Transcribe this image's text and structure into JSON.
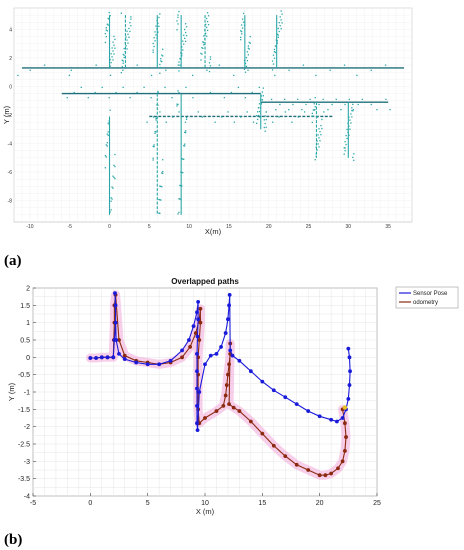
{
  "panel_a_label": "(a)",
  "panel_b_label": "(b)",
  "colors": {
    "map_wall": "#2aa6a6",
    "map_dark": "#1f6f7a",
    "sensor_pose": "#1a1adb",
    "odometry": "#8b2a10",
    "highlight": "#f2a8d8",
    "marker": "#e8c020"
  },
  "chart_data": [
    {
      "type": "scatter",
      "panel": "(a)",
      "title": "",
      "xlabel": "X(m)",
      "ylabel": "Y (m)",
      "xlim": [
        -12,
        38
      ],
      "ylim": [
        -9.5,
        5.5
      ],
      "xticks": [
        -10,
        -5,
        0,
        5,
        10,
        15,
        20,
        25,
        30,
        35
      ],
      "yticks": [
        4,
        2,
        0,
        -2,
        -4,
        -6,
        -8
      ],
      "grid": true,
      "walls": [
        {
          "x": [
            -11,
            37
          ],
          "y": [
            1.3,
            1.3
          ]
        },
        {
          "x": [
            -6,
            19
          ],
          "y": [
            -0.5,
            -0.5
          ]
        },
        {
          "x": [
            5,
            28
          ],
          "y": [
            -2.1,
            -2.1
          ]
        },
        {
          "x": [
            19,
            35
          ],
          "y": [
            -1.1,
            -1.1
          ]
        },
        {
          "x": [
            0,
            0
          ],
          "y": [
            5,
            1.3
          ]
        },
        {
          "x": [
            2,
            2
          ],
          "y": [
            5,
            1.3
          ]
        },
        {
          "x": [
            6,
            6
          ],
          "y": [
            5,
            1.3
          ]
        },
        {
          "x": [
            9,
            9
          ],
          "y": [
            5,
            1.3
          ]
        },
        {
          "x": [
            12,
            12
          ],
          "y": [
            5,
            1.3
          ]
        },
        {
          "x": [
            17,
            17
          ],
          "y": [
            5,
            1.3
          ]
        },
        {
          "x": [
            21,
            21
          ],
          "y": [
            5,
            1.3
          ]
        },
        {
          "x": [
            6,
            6
          ],
          "y": [
            -0.5,
            -9
          ]
        },
        {
          "x": [
            9,
            9
          ],
          "y": [
            -0.5,
            -9
          ]
        },
        {
          "x": [
            19,
            19
          ],
          "y": [
            -0.5,
            -3
          ]
        },
        {
          "x": [
            26,
            26
          ],
          "y": [
            -1.1,
            -5
          ]
        },
        {
          "x": [
            30,
            30
          ],
          "y": [
            -1.1,
            -5
          ]
        },
        {
          "x": [
            0,
            0
          ],
          "y": [
            -2.1,
            -9
          ]
        }
      ]
    },
    {
      "type": "line",
      "panel": "(b)",
      "title": "Overlapped paths",
      "xlabel": "X (m)",
      "ylabel": "Y (m)",
      "xlim": [
        -5,
        25
      ],
      "ylim": [
        -4,
        2
      ],
      "xticks": [
        -5,
        0,
        5,
        10,
        15,
        20,
        25
      ],
      "yticks": [
        2,
        1.5,
        1,
        0.5,
        0,
        -0.5,
        -1,
        -1.5,
        -2,
        -2.5,
        -3,
        -3.5,
        -4
      ],
      "grid": true,
      "legend": "top-right",
      "series": [
        {
          "name": "Sensor Pose",
          "x": [
            0,
            0.5,
            1,
            1.5,
            2.0,
            2.1,
            2.2,
            2.2,
            2.15,
            2.25,
            2.5,
            3,
            4,
            5,
            6,
            7,
            8,
            8.6,
            9.0,
            9.3,
            9.4,
            9.4,
            9.35,
            9.3,
            9.3,
            9.3,
            9.3,
            9.3,
            9.35,
            9.5,
            10,
            10.5,
            11,
            11.4,
            11.8,
            12.0,
            12.1,
            12.15,
            12.2,
            12.4,
            13,
            14,
            15,
            16,
            17,
            18,
            19,
            20,
            21,
            21.5,
            22.0,
            22.3,
            22.5,
            22.6,
            22.65,
            22.6,
            22.5
          ],
          "y": [
            -0.02,
            -0.02,
            0,
            0,
            0,
            0.5,
            1.0,
            1.5,
            1.85,
            0.5,
            0.1,
            -0.05,
            -0.15,
            -0.2,
            -0.2,
            -0.1,
            0.2,
            0.5,
            0.9,
            1.3,
            1.6,
            1.1,
            0.6,
            0.1,
            -0.4,
            -0.9,
            -1.4,
            -1.9,
            -2.1,
            -1.0,
            -0.2,
            0.05,
            0.1,
            0.3,
            0.7,
            1.1,
            1.5,
            1.8,
            0.2,
            0.05,
            -0.1,
            -0.4,
            -0.7,
            -0.95,
            -1.15,
            -1.35,
            -1.55,
            -1.7,
            -1.8,
            -1.85,
            -1.75,
            -1.5,
            -1.2,
            -0.8,
            -0.4,
            0,
            0.25
          ]
        },
        {
          "name": "odometry",
          "x": [
            0,
            0.5,
            1,
            1.5,
            2.0,
            2.05,
            2.1,
            2.1,
            2.2,
            2.5,
            3,
            4,
            5,
            6,
            7,
            8,
            8.7,
            9.2,
            9.5,
            9.6,
            9.6,
            9.5,
            9.4,
            9.4,
            9.4,
            9.4,
            9.5,
            10,
            11,
            11.6,
            11.8,
            11.9,
            12.0,
            12.1,
            12.2,
            12.2,
            12.1,
            12.5,
            13,
            14,
            15,
            16,
            17,
            18,
            19,
            20,
            20.5,
            21,
            21.6,
            22.0,
            22.2,
            22.3,
            22.2,
            22.0
          ],
          "y": [
            -0.02,
            -0.02,
            0,
            0,
            0,
            0.5,
            1.0,
            1.5,
            1.8,
            0.5,
            0.05,
            -0.1,
            -0.15,
            -0.2,
            -0.15,
            0,
            0.3,
            0.7,
            1.1,
            1.4,
            1.0,
            0.5,
            0,
            -0.5,
            -1.0,
            -1.5,
            -1.9,
            -1.75,
            -1.55,
            -1.4,
            -1.1,
            -0.8,
            -0.5,
            -0.2,
            0.1,
            0.4,
            -1.35,
            -1.45,
            -1.55,
            -1.85,
            -2.2,
            -2.55,
            -2.85,
            -3.1,
            -3.25,
            -3.4,
            -3.4,
            -3.35,
            -3.2,
            -3.0,
            -2.7,
            -2.3,
            -1.9,
            -1.5
          ]
        }
      ],
      "highlight_series": "odometry",
      "marker_point": {
        "x": 22.2,
        "y": -1.45
      }
    }
  ]
}
